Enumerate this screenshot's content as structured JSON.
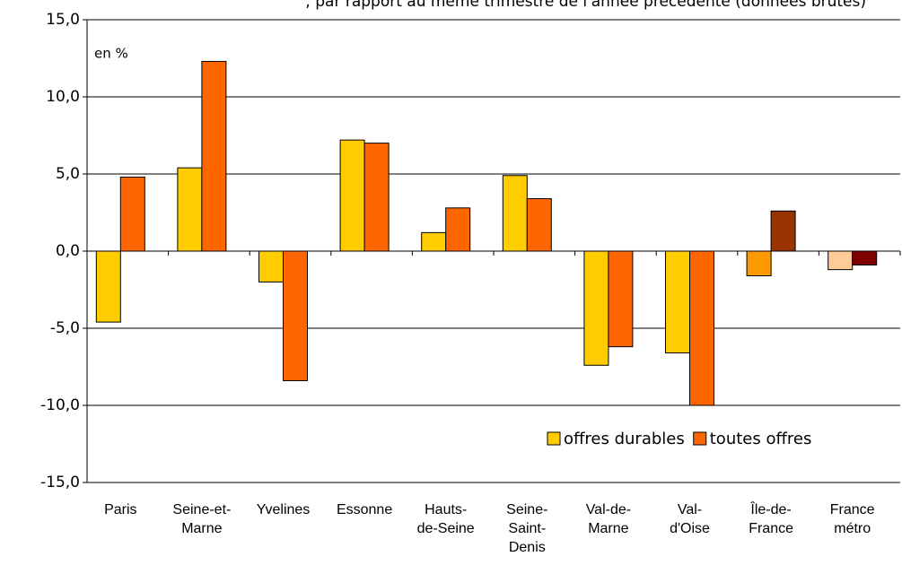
{
  "chart_data": {
    "type": "bar",
    "title": ", par rapport au même trimestre de l'année précédente (données brutes)",
    "annotation": "en %",
    "categories": [
      "Paris",
      "Seine-et-\nMarne",
      "Yvelines",
      "Essonne",
      "Hauts-\nde-Seine",
      "Seine-\nSaint-\nDenis",
      "Val-de-\nMarne",
      "Val-\nd'Oise",
      "Île-de-\nFrance",
      "France\nmétro"
    ],
    "series": [
      {
        "name": "offres durables",
        "color": "#ffcc00",
        "colors": [
          "#ffcc00",
          "#ffcc00",
          "#ffcc00",
          "#ffcc00",
          "#ffcc00",
          "#ffcc00",
          "#ffcc00",
          "#ffcc00",
          "#ff9900",
          "#ffcc99"
        ],
        "values": [
          -4.6,
          5.4,
          -2.0,
          7.2,
          1.2,
          4.9,
          -7.4,
          -6.6,
          -1.6,
          -1.2
        ]
      },
      {
        "name": "toutes offres",
        "color": "#ff6600",
        "colors": [
          "#ff6600",
          "#ff6600",
          "#ff6600",
          "#ff6600",
          "#ff6600",
          "#ff6600",
          "#ff6600",
          "#ff6600",
          "#993300",
          "#800000"
        ],
        "values": [
          4.8,
          12.3,
          -8.4,
          7.0,
          2.8,
          3.4,
          -6.2,
          -10.0,
          2.6,
          -0.9
        ]
      }
    ],
    "ylim": [
      -15,
      15
    ],
    "yticks": [
      {
        "value": -15,
        "label": "-15,0"
      },
      {
        "value": -10,
        "label": "-10,0"
      },
      {
        "value": -5,
        "label": "-5,0"
      },
      {
        "value": 0,
        "label": "0,0"
      },
      {
        "value": 5,
        "label": "5,0"
      },
      {
        "value": 10,
        "label": "10,0"
      },
      {
        "value": 15,
        "label": "15,0"
      }
    ],
    "grid": true,
    "legend": "lower right"
  }
}
